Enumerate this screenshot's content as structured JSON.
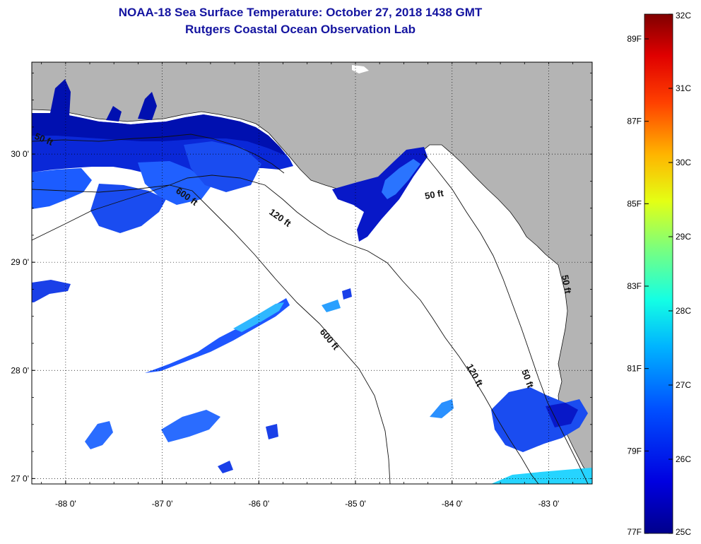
{
  "title": {
    "line1": "NOAA-18 Sea Surface Temperature:  October 27, 2018 1438 GMT",
    "line2": "Rutgers Coastal Ocean Observation Lab"
  },
  "colors": {
    "title": "#1414a0",
    "land": "#b4b4b4",
    "ocean_nodata": "#ffffff",
    "sst_dark": "#0000a8",
    "sst_mid": "#0a3cff",
    "sst_light": "#2aa8ff",
    "sst_cyan": "#20e0ff"
  },
  "map": {
    "lon_range": [
      -88.35,
      -82.55
    ],
    "lat_range": [
      26.95,
      30.85
    ],
    "lon_ticks": [
      {
        "value": -88,
        "label": "-88 0'"
      },
      {
        "value": -87,
        "label": "-87 0'"
      },
      {
        "value": -86,
        "label": "-86 0'"
      },
      {
        "value": -85,
        "label": "-85 0'"
      },
      {
        "value": -84,
        "label": "-84 0'"
      },
      {
        "value": -83,
        "label": "-83 0'"
      }
    ],
    "lat_ticks": [
      {
        "value": 30,
        "label": "30 0'"
      },
      {
        "value": 29,
        "label": "29 0'"
      },
      {
        "value": 28,
        "label": "28 0'"
      },
      {
        "value": 27,
        "label": "27 0'"
      }
    ],
    "contour_labels": [
      "50 ft",
      "600 ft",
      "120 ft",
      "50 ft",
      "600 ft",
      "120 ft",
      "50 ft",
      "50 ft"
    ]
  },
  "colorbar": {
    "celsius_labels": [
      "32C",
      "31C",
      "30C",
      "29C",
      "28C",
      "27C",
      "26C",
      "25C"
    ],
    "fahrenheit_labels": [
      "89F",
      "87F",
      "85F",
      "83F",
      "81F",
      "79F",
      "77F"
    ],
    "c_range": [
      25,
      32
    ],
    "f_values": [
      89,
      87,
      85,
      83,
      81,
      79,
      77
    ]
  }
}
